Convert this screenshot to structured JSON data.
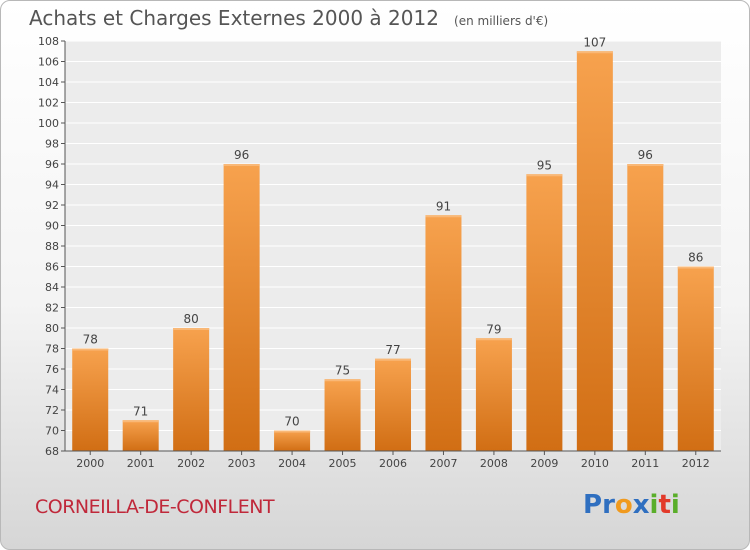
{
  "header": {
    "title": "Achats et Charges Externes 2000 à 2012",
    "unit": "(en milliers d'€)"
  },
  "footer": {
    "commune": "CORNEILLA-DE-CONFLENT",
    "brand_letters": [
      {
        "ch": "P",
        "color": "#2f6fc0"
      },
      {
        "ch": "r",
        "color": "#2f6fc0"
      },
      {
        "ch": "o",
        "color": "#f09a1e"
      },
      {
        "ch": "x",
        "color": "#2f6fc0"
      },
      {
        "ch": "i",
        "color": "#5aae2a"
      },
      {
        "ch": "t",
        "color": "#e23a2a"
      },
      {
        "ch": "i",
        "color": "#5aae2a"
      }
    ]
  },
  "colors": {
    "bar_top": "#f7a24e",
    "bar_bottom": "#d16e14",
    "commune": "#c0283a"
  },
  "chart_data": {
    "type": "bar",
    "title": "Achats et Charges Externes 2000 à 2012",
    "subtitle": "(en milliers d'€)",
    "categories": [
      "2000",
      "2001",
      "2002",
      "2003",
      "2004",
      "2005",
      "2006",
      "2007",
      "2008",
      "2009",
      "2010",
      "2011",
      "2012"
    ],
    "values": [
      78,
      71,
      80,
      96,
      70,
      75,
      77,
      91,
      79,
      95,
      107,
      96,
      86
    ],
    "ylim": [
      68,
      108
    ],
    "yticks": [
      68,
      70,
      72,
      74,
      76,
      78,
      80,
      82,
      84,
      86,
      88,
      90,
      92,
      94,
      96,
      98,
      100,
      102,
      104,
      106,
      108
    ],
    "grid": "horizontal",
    "data_labels": true
  }
}
